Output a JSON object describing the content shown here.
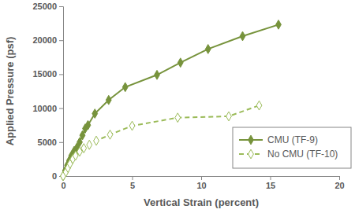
{
  "chart_data": {
    "type": "line",
    "x_label": "Vertical Strain (percent)",
    "y_label": "Applied Pressure (psf)",
    "xlim": [
      0,
      20
    ],
    "xticks": [
      0,
      5,
      10,
      15,
      20
    ],
    "ylim": [
      0,
      25000
    ],
    "yticks": [
      0,
      5000,
      10000,
      15000,
      20000,
      25000
    ],
    "grid": false,
    "legend": "lower right",
    "series": [
      {
        "name": "CMU (TF-9)",
        "color": "#77933c",
        "marker": "diamond",
        "line_style": "solid",
        "x": [
          0,
          0.15,
          0.3,
          0.45,
          0.6,
          0.8,
          1.0,
          1.2,
          1.4,
          1.6,
          1.8,
          2.3,
          3.3,
          4.5,
          6.8,
          8.5,
          10.5,
          13,
          15.6
        ],
        "values": [
          0,
          800,
          1600,
          2300,
          3000,
          3700,
          4200,
          5000,
          6000,
          7000,
          7500,
          9200,
          11200,
          13100,
          14900,
          16700,
          18700,
          20600,
          22300
        ]
      },
      {
        "name": "No CMU (TF-10)",
        "color": "#9bbb59",
        "marker": "open-diamond",
        "line_style": "dashed",
        "x": [
          0,
          0.2,
          0.35,
          0.5,
          0.7,
          0.9,
          1.2,
          1.5,
          1.9,
          2.4,
          3.4,
          5,
          8.3,
          12,
          14.2
        ],
        "values": [
          0,
          600,
          1200,
          1800,
          2500,
          3000,
          3600,
          4100,
          4600,
          5200,
          6100,
          7400,
          8600,
          8800,
          10400
        ]
      }
    ]
  }
}
